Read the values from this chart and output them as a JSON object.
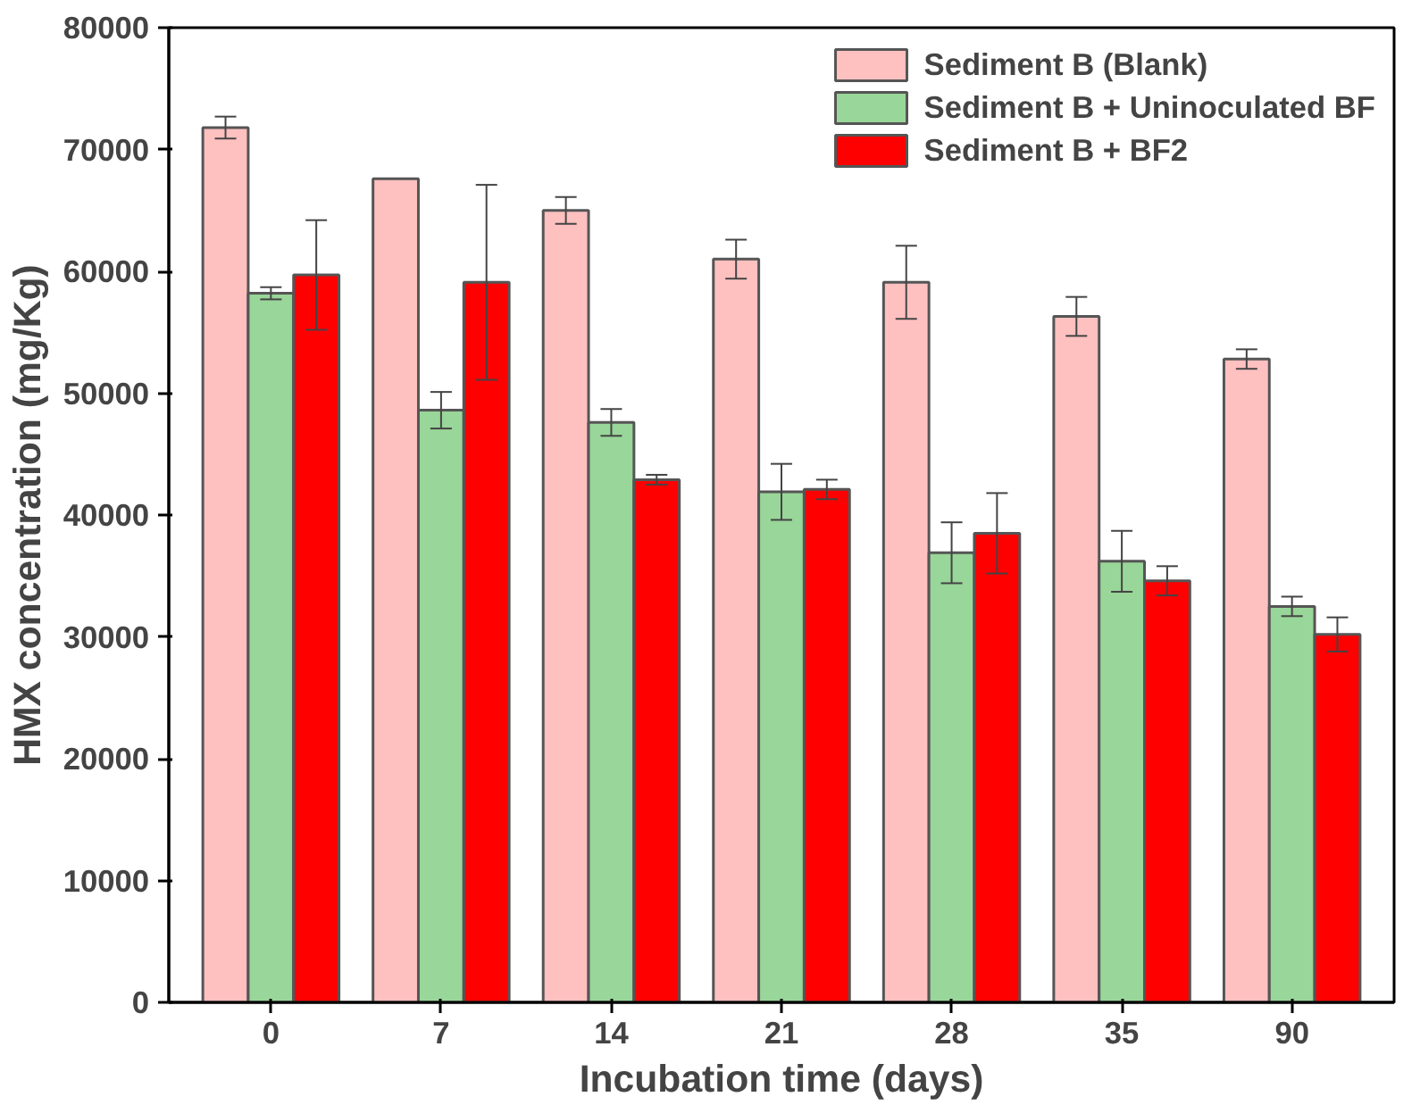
{
  "chart_data": {
    "type": "bar",
    "xlabel": "Incubation time (days)",
    "ylabel": "HMX concentration (mg/Kg)",
    "categories": [
      "0",
      "7",
      "14",
      "21",
      "28",
      "35",
      "90"
    ],
    "series": [
      {
        "name": "Sediment B (Blank)",
        "color": "#ffc0c0",
        "values": [
          71800,
          67600,
          65000,
          61000,
          59100,
          56300,
          52800
        ],
        "errors": [
          900,
          null,
          1100,
          1600,
          3000,
          1600,
          800
        ]
      },
      {
        "name": "Sediment B + Uninoculated BF",
        "color": "#99d699",
        "values": [
          58200,
          48600,
          47600,
          41900,
          36900,
          36200,
          32500
        ],
        "errors": [
          500,
          1500,
          1100,
          2300,
          2500,
          2500,
          800
        ]
      },
      {
        "name": "Sediment B + BF2",
        "color": "#ff0000",
        "values": [
          59700,
          59100,
          42900,
          42100,
          38500,
          34600,
          30200
        ],
        "errors": [
          4500,
          8000,
          400,
          800,
          3300,
          1200,
          1400
        ]
      }
    ],
    "ylim": [
      0,
      80000
    ],
    "yticks": [
      0,
      10000,
      20000,
      30000,
      40000,
      50000,
      60000,
      70000,
      80000
    ],
    "grid": false,
    "legend": "top right"
  }
}
